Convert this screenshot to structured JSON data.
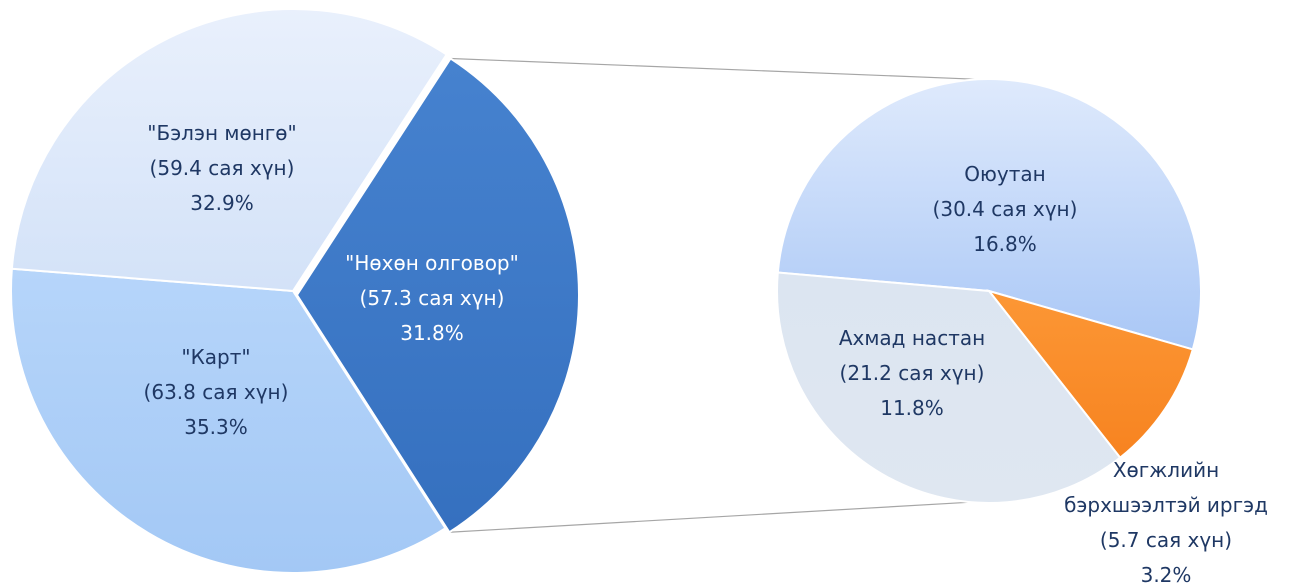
{
  "chart_data": [
    {
      "type": "pie",
      "slices": [
        {
          "lines": [
            "\"Бэлэн мөнгө\"",
            "(59.4 сая хүн)",
            "32.9%"
          ],
          "value": 59.4,
          "percent": 32.9,
          "color": "#dbe7f9"
        },
        {
          "lines": [
            "\"Нөхөн олговор\"",
            "(57.3 сая хүн)",
            "31.8%"
          ],
          "value": 57.3,
          "percent": 31.8,
          "color": "#3c79c8",
          "exploded": true
        },
        {
          "lines": [
            "\"Карт\"",
            "(63.8 сая хүн)",
            "35.3%"
          ],
          "value": 63.8,
          "percent": 35.3,
          "color": "#a9cdf7"
        }
      ]
    },
    {
      "type": "pie",
      "slices": [
        {
          "lines": [
            "Оюутан",
            "(30.4 сая хүн)",
            "16.8%"
          ],
          "value": 30.4,
          "percent": 16.8,
          "color": "#c8dcfb"
        },
        {
          "lines": [
            "Хөгжлийн",
            "бэрхшээлтэй иргэд",
            "(5.7 сая хүн)",
            "3.2%"
          ],
          "value": 5.7,
          "percent": 3.2,
          "color": "#fb8f2a"
        },
        {
          "lines": [
            "Ахмад настан",
            "(21.2 сая хүн)",
            "11.8%"
          ],
          "value": 21.2,
          "percent": 11.8,
          "color": "#dde5f0"
        }
      ]
    }
  ]
}
